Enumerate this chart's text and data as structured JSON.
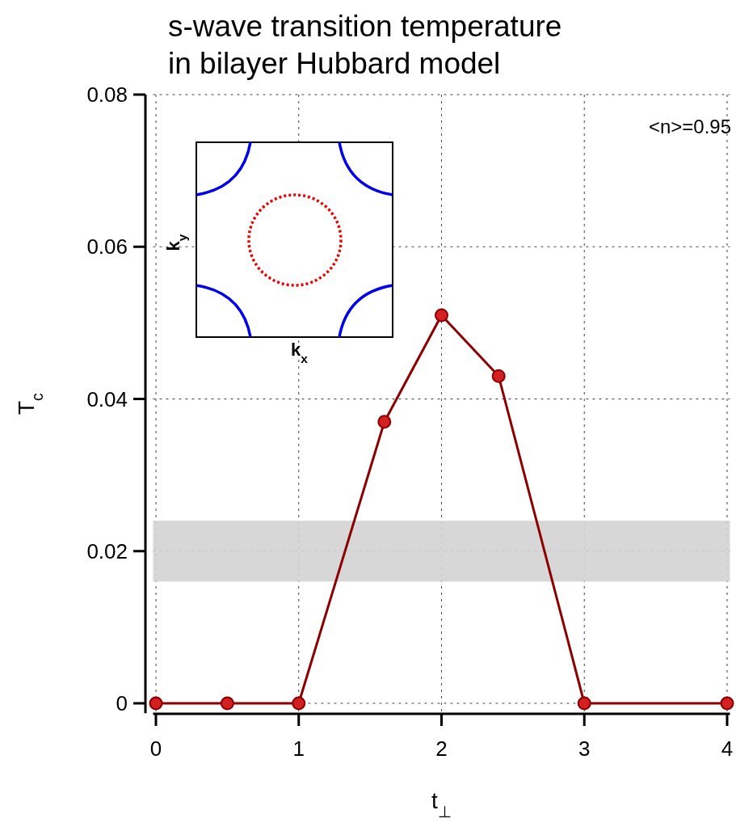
{
  "chart_data": {
    "type": "line",
    "title": "s-wave transition temperature\nin bilayer Hubbard model",
    "xlabel": "t$_{⊥}$",
    "ylabel": "T$_{c}$",
    "x": [
      0,
      0.5,
      1,
      1.6,
      2,
      2.4,
      3,
      4
    ],
    "series": [
      {
        "color": "#8b0000",
        "values": [
          0,
          0,
          0,
          0.037,
          0.051,
          0.043,
          0,
          0
        ]
      }
    ],
    "xlim": [
      -0.02,
      4.02
    ],
    "ylim": [
      -0.0013,
      0.08
    ],
    "xticks": [
      0,
      1,
      2,
      3,
      4
    ],
    "yticks": [
      {
        "value": 0,
        "label": "0"
      },
      0.02,
      0.04,
      0.06,
      0.08
    ],
    "bands": [
      {
        "axis": "y",
        "from": 0.016,
        "to": 0.024,
        "color": "#d3d3d3"
      }
    ],
    "annotations": [
      "<n>=0.95",
      "k$_{x}$",
      "k$_{y}$"
    ],
    "grid": true,
    "marker": "circle",
    "line_style": "solid"
  }
}
